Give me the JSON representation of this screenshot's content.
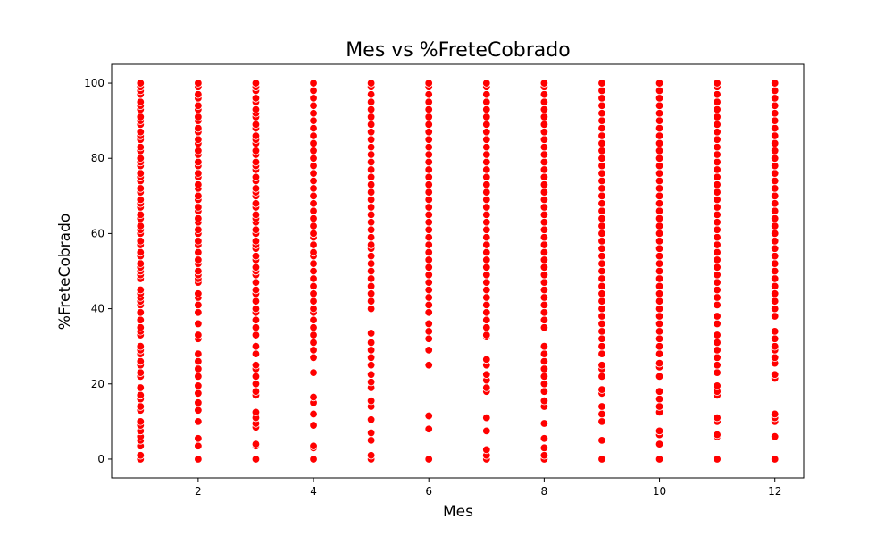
{
  "chart_data": {
    "type": "scatter",
    "title": "Mes vs %FreteCobrado",
    "xlabel": "Mes",
    "ylabel": "%FreteCobrado",
    "xlim": [
      0.5,
      12.5
    ],
    "ylim": [
      -5,
      105
    ],
    "xticks": [
      2,
      4,
      6,
      8,
      10,
      12
    ],
    "yticks": [
      0,
      20,
      40,
      60,
      80,
      100
    ],
    "marker_color": "#ff0000",
    "marker_edge_color": "#ffffff",
    "grid": false,
    "legend": "none",
    "series": [
      {
        "x": 1,
        "y": [
          0,
          1,
          3.5,
          5,
          6,
          7.5,
          9,
          10,
          13,
          14,
          16,
          17,
          19,
          22,
          23,
          25,
          26,
          28,
          29,
          30,
          33,
          34,
          35,
          37,
          39,
          41,
          42,
          43,
          44,
          45,
          48,
          49,
          50,
          51,
          52,
          54,
          55,
          57,
          58,
          60,
          61,
          62,
          64,
          65,
          67,
          68,
          69,
          71,
          72,
          74,
          75,
          76,
          78,
          79,
          80,
          82,
          83,
          85,
          86,
          87,
          89,
          90,
          91,
          93,
          94,
          95,
          97,
          98,
          99,
          100
        ]
      },
      {
        "x": 2,
        "y": [
          0,
          3.5,
          5.5,
          10,
          13,
          15,
          17.5,
          19.5,
          22,
          24,
          26,
          28,
          32,
          33,
          36,
          39,
          41,
          43,
          44,
          47,
          48,
          49,
          50,
          52,
          53,
          55,
          57,
          58,
          60,
          61,
          63,
          64,
          66,
          67,
          69,
          70,
          72,
          73,
          75,
          76,
          78,
          79,
          81,
          82,
          84,
          85,
          87,
          88,
          90,
          91,
          93,
          94,
          96,
          97,
          99,
          100
        ]
      },
      {
        "x": 3,
        "y": [
          0,
          3.5,
          4,
          8.5,
          9.5,
          11,
          12.5,
          17,
          18,
          20,
          22,
          24,
          25,
          28,
          30,
          33,
          35,
          37,
          39,
          40,
          42,
          44,
          45,
          47,
          49,
          50,
          51,
          53,
          54,
          56,
          57,
          58,
          60,
          61,
          63,
          64,
          65,
          67,
          68,
          70,
          71,
          72,
          74,
          75,
          77,
          78,
          79,
          81,
          82,
          84,
          85,
          86,
          88,
          89,
          91,
          92,
          93,
          95,
          96,
          98,
          99,
          100
        ]
      },
      {
        "x": 4,
        "y": [
          0,
          3,
          3.5,
          9,
          12,
          15,
          16.5,
          23,
          27,
          29,
          31,
          33,
          35,
          37,
          39,
          40,
          42,
          44,
          46,
          48,
          50,
          52,
          54,
          55,
          57,
          59,
          60,
          62,
          64,
          66,
          68,
          70,
          72,
          74,
          76,
          78,
          80,
          82,
          84,
          86,
          88,
          90,
          92,
          94,
          96,
          98,
          100
        ]
      },
      {
        "x": 5,
        "y": [
          0,
          1,
          5,
          7,
          10.5,
          14,
          15.5,
          19,
          20.5,
          22.5,
          25,
          27,
          29,
          31,
          33.5,
          40,
          42,
          44,
          46,
          48,
          50,
          52,
          54,
          56,
          57,
          59,
          61,
          63,
          65,
          67,
          69,
          71,
          73,
          75,
          77,
          79,
          81,
          83,
          85,
          87,
          89,
          91,
          93,
          95,
          97,
          99,
          100
        ]
      },
      {
        "x": 6,
        "y": [
          0,
          8,
          11.5,
          25,
          29,
          32,
          34,
          36,
          39,
          41,
          43,
          45,
          47,
          49,
          51,
          53,
          55,
          57,
          59,
          61,
          63,
          65,
          67,
          69,
          71,
          73,
          75,
          77,
          79,
          81,
          83,
          85,
          87,
          89,
          91,
          93,
          95,
          97,
          99,
          100
        ]
      },
      {
        "x": 7,
        "y": [
          0,
          1,
          2.5,
          7.5,
          11,
          18,
          19,
          21,
          22.5,
          25,
          26.5,
          32.5,
          33,
          35,
          37,
          39,
          41,
          43,
          45,
          47,
          49,
          51,
          53,
          55,
          57,
          59,
          61,
          63,
          65,
          67,
          69,
          71,
          73,
          75,
          77,
          79,
          81,
          83,
          85,
          87,
          89,
          91,
          93,
          95,
          97,
          99,
          100
        ]
      },
      {
        "x": 8,
        "y": [
          0,
          1,
          3,
          5.5,
          9.5,
          14,
          15.5,
          18,
          20,
          22,
          24,
          26,
          28,
          30,
          35,
          37,
          39,
          41,
          43,
          45,
          47,
          49,
          51,
          53,
          55,
          57,
          59,
          61,
          63,
          65,
          67,
          69,
          71,
          73,
          75,
          77,
          79,
          81,
          83,
          85,
          87,
          89,
          91,
          93,
          95,
          97,
          99,
          100
        ]
      },
      {
        "x": 9,
        "y": [
          0,
          5,
          10,
          12,
          14,
          17.5,
          18.5,
          22,
          24,
          25,
          28,
          30,
          32,
          34,
          36,
          38,
          40,
          42,
          44,
          46,
          48,
          50,
          52,
          54,
          56,
          58,
          60,
          62,
          64,
          66,
          68,
          70,
          72,
          74,
          76,
          78,
          80,
          82,
          84,
          86,
          88,
          90,
          92,
          94,
          96,
          98,
          100
        ]
      },
      {
        "x": 10,
        "y": [
          0,
          4,
          6.5,
          7.5,
          12.5,
          14,
          16,
          18,
          22,
          24.5,
          25.5,
          28,
          30,
          32,
          34,
          36,
          38,
          40,
          42,
          44,
          46,
          48,
          50,
          52,
          54,
          56,
          58,
          60,
          62,
          64,
          66,
          68,
          70,
          72,
          74,
          76,
          78,
          80,
          82,
          84,
          86,
          88,
          90,
          92,
          94,
          96,
          98,
          100
        ]
      },
      {
        "x": 11,
        "y": [
          0,
          6,
          6.5,
          10,
          11,
          17,
          18,
          19.5,
          23,
          25,
          27,
          29,
          31,
          33,
          36,
          38,
          41,
          43,
          45,
          47,
          49,
          51,
          53,
          55,
          57,
          59,
          61,
          63,
          65,
          67,
          69,
          71,
          73,
          75,
          77,
          79,
          81,
          83,
          85,
          87,
          89,
          91,
          93,
          95,
          97,
          99,
          100
        ]
      },
      {
        "x": 12,
        "y": [
          0,
          6,
          10,
          11,
          12,
          21.5,
          22.5,
          25.5,
          27,
          29,
          30,
          32,
          34,
          38,
          40,
          42,
          44,
          46,
          48,
          50,
          52,
          54,
          56,
          58,
          60,
          62,
          64,
          66,
          68,
          70,
          72,
          74,
          76,
          78,
          80,
          82,
          84,
          86,
          88,
          90,
          92,
          94,
          96,
          98,
          100
        ]
      }
    ]
  }
}
